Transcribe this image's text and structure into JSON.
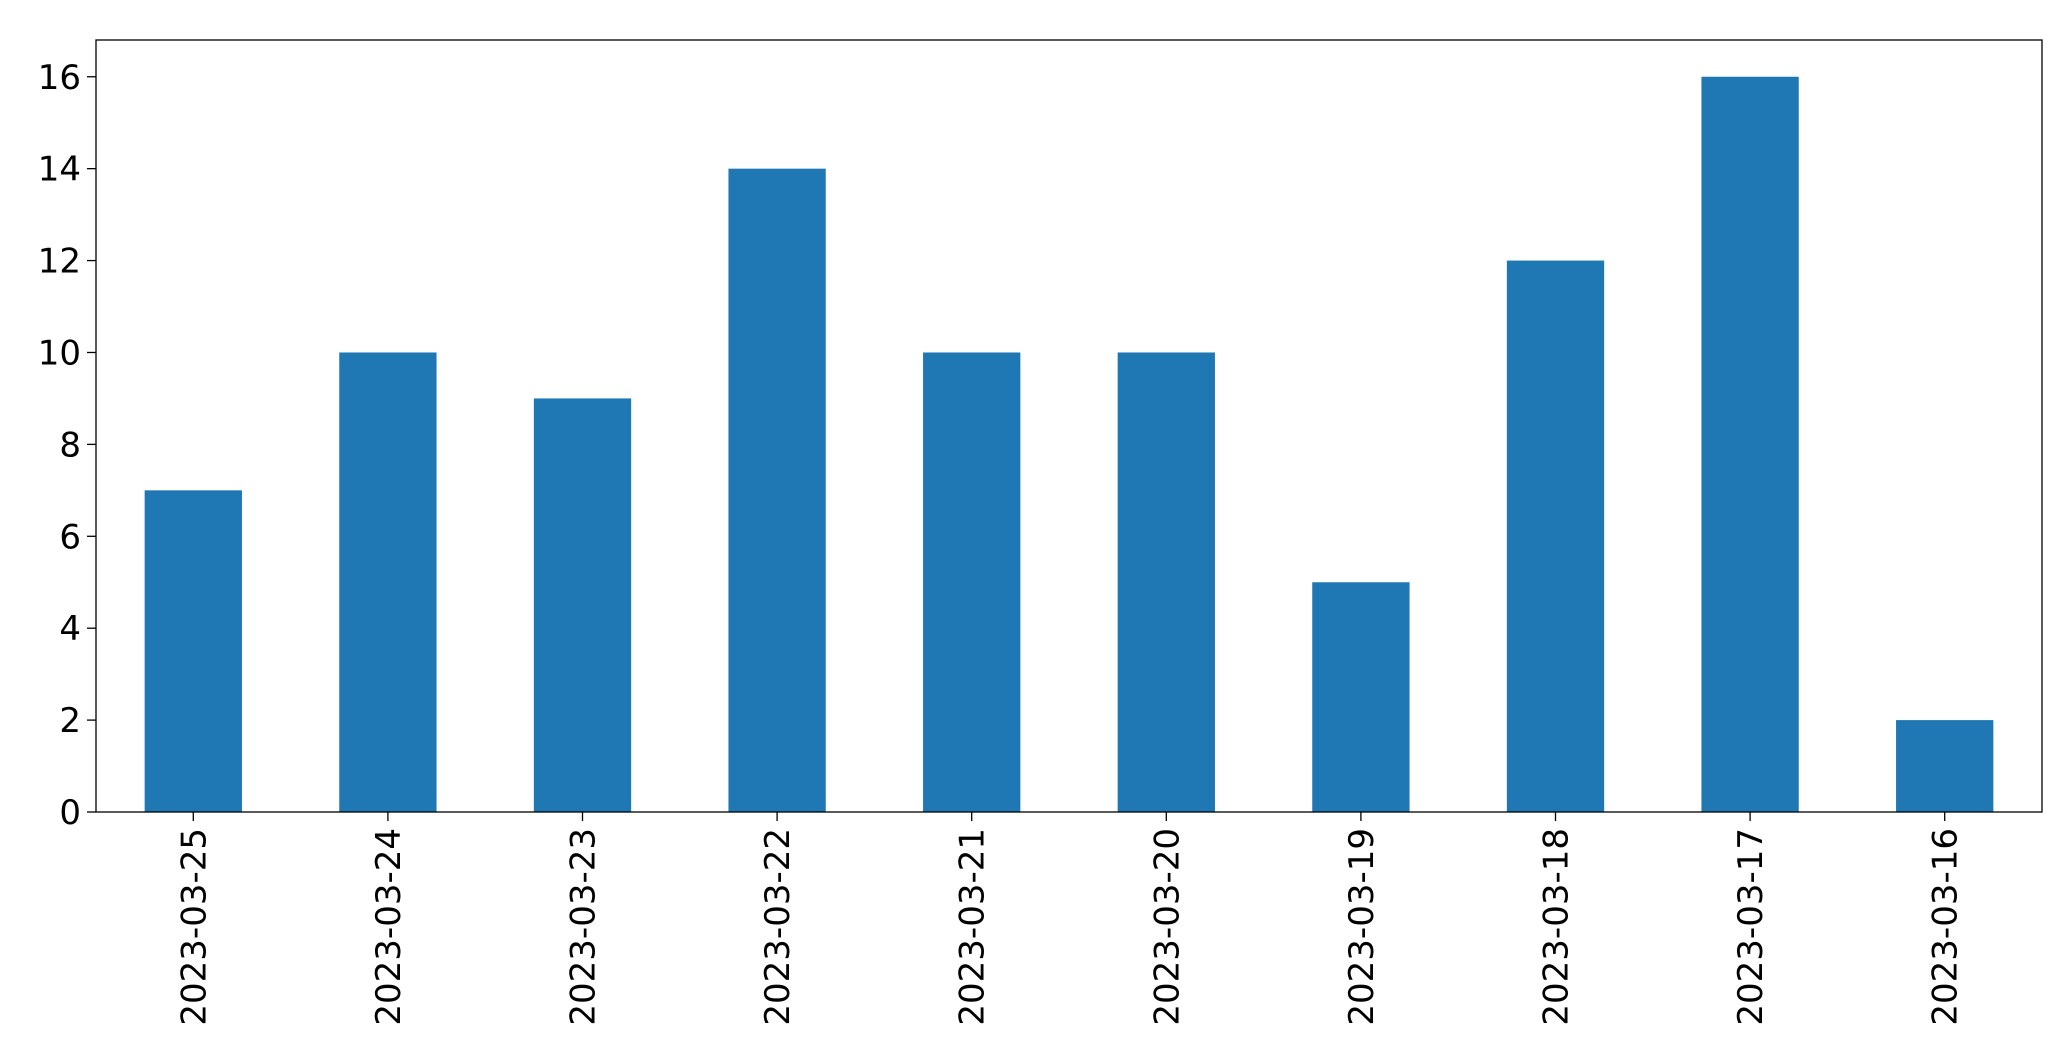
{
  "chart_data": {
    "type": "bar",
    "categories": [
      "2023-03-25",
      "2023-03-24",
      "2023-03-23",
      "2023-03-22",
      "2023-03-21",
      "2023-03-20",
      "2023-03-19",
      "2023-03-18",
      "2023-03-17",
      "2023-03-16"
    ],
    "values": [
      7,
      10,
      9,
      14,
      10,
      10,
      5,
      12,
      16,
      2
    ],
    "color": "#1f77b4",
    "ylim": [
      0,
      16.8
    ],
    "yticks": [
      0,
      2,
      4,
      6,
      8,
      10,
      12,
      14,
      16
    ],
    "grid": false
  }
}
